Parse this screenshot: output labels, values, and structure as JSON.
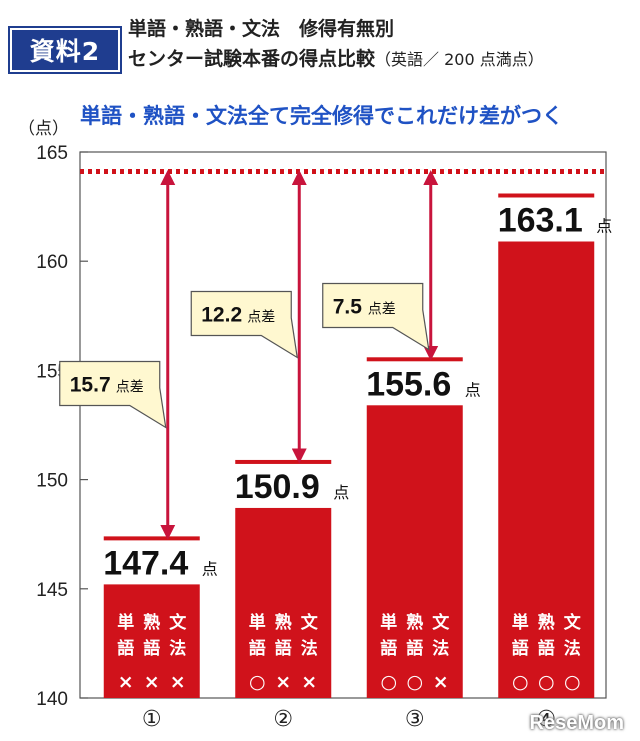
{
  "header": {
    "badge": "資料2",
    "title_line1": "単語・熟語・文法　修得有無別",
    "title_line2": "センター試験本番の得点比較",
    "title_note": "（英語／ 200 点満点）"
  },
  "headline": "単語・熟語・文法全て完全修得でこれだけ差がつく",
  "watermark": "ReseMom",
  "chart_data": {
    "type": "bar",
    "unit_label": "（点）",
    "ylim": [
      140,
      165
    ],
    "yticks": [
      140,
      145,
      150,
      155,
      160,
      165
    ],
    "grid": false,
    "categories": [
      "①",
      "②",
      "③",
      "④"
    ],
    "values": [
      147.4,
      150.9,
      155.6,
      163.1
    ],
    "value_labels": [
      "147.4",
      "150.9",
      "155.6",
      "163.1"
    ],
    "value_suffix": "点",
    "bar_color": "#d0121b",
    "reference_line": {
      "value": 163.1,
      "style": "dotted",
      "color": "#d0121b"
    },
    "conditions": [
      {
        "labels": [
          "単語",
          "熟語",
          "文法"
        ],
        "marks": [
          "×",
          "×",
          "×"
        ]
      },
      {
        "labels": [
          "単語",
          "熟語",
          "文法"
        ],
        "marks": [
          "○",
          "×",
          "×"
        ]
      },
      {
        "labels": [
          "単語",
          "熟語",
          "文法"
        ],
        "marks": [
          "○",
          "○",
          "×"
        ]
      },
      {
        "labels": [
          "単語",
          "熟語",
          "文法"
        ],
        "marks": [
          "○",
          "○",
          "○"
        ]
      }
    ],
    "differences": [
      {
        "bar": 0,
        "value": "15.7",
        "suffix": "点差"
      },
      {
        "bar": 1,
        "value": "12.2",
        "suffix": "点差"
      },
      {
        "bar": 2,
        "value": "7.5",
        "suffix": "点差"
      }
    ]
  }
}
